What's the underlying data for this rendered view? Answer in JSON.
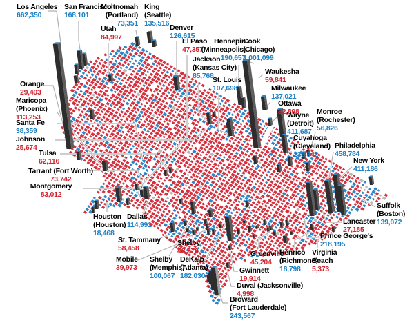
{
  "colors": {
    "dem_text": "#1b80c4",
    "rep_text": "#d0232f",
    "map_dem": "#2e86c6",
    "map_rep": "#d6303f",
    "map_tie": "#b9b9b9",
    "leader": "#b0b0b0",
    "spike_front": "#2d2d2d",
    "spike_side": "#5e5e5e",
    "background": "#ffffff"
  },
  "labels": [
    {
      "id": "los-angeles",
      "lines": [
        "Los Angeles"
      ],
      "value": "662,350",
      "party": "dem"
    },
    {
      "id": "san-francisco",
      "lines": [
        "San Francisco"
      ],
      "value": "168,101",
      "party": "dem"
    },
    {
      "id": "multnomah",
      "lines": [
        "Multnomah",
        "(Portland)"
      ],
      "value": "73,351",
      "party": "dem"
    },
    {
      "id": "king",
      "lines": [
        "King",
        "(Seattle)"
      ],
      "value": "135,516",
      "party": "dem"
    },
    {
      "id": "utah",
      "lines": [
        "Utah"
      ],
      "value": "84,997",
      "party": "rep"
    },
    {
      "id": "denver",
      "lines": [
        "Denver"
      ],
      "value": "126,615",
      "party": "dem"
    },
    {
      "id": "el-paso",
      "lines": [
        "El Paso"
      ],
      "value": "47,357",
      "party": "rep"
    },
    {
      "id": "jackson",
      "lines": [
        "Jackson",
        "(Kansas City)"
      ],
      "value": "85,768",
      "party": "dem"
    },
    {
      "id": "st-louis",
      "lines": [
        "St. Louis"
      ],
      "value": "107,698",
      "party": "dem"
    },
    {
      "id": "hennepin",
      "lines": [
        "Hennepin",
        "(Minneapolis)"
      ],
      "value": "190,657",
      "party": "dem"
    },
    {
      "id": "cook",
      "lines": [
        "Cook",
        "(Chicago)"
      ],
      "value": "1,001,099",
      "party": "dem"
    },
    {
      "id": "waukesha",
      "lines": [
        "Waukesha"
      ],
      "value": "59,841",
      "party": "rep"
    },
    {
      "id": "milwaukee",
      "lines": [
        "Milwaukee"
      ],
      "value": "137,021",
      "party": "dem"
    },
    {
      "id": "ottawa",
      "lines": [
        "Ottawa"
      ],
      "value": "32,898",
      "party": "rep"
    },
    {
      "id": "wayne",
      "lines": [
        "Wayne",
        "(Detroit)"
      ],
      "value": "411,687",
      "party": "dem"
    },
    {
      "id": "monroe",
      "lines": [
        "Monroe",
        "(Rochester)"
      ],
      "value": "56,826",
      "party": "dem"
    },
    {
      "id": "cuyahoga",
      "lines": [
        "Cuyahoga",
        "(Cleveland)"
      ],
      "value": "238,342",
      "party": "dem"
    },
    {
      "id": "philadelphia",
      "lines": [
        "Philadelphia"
      ],
      "value": "458,784",
      "party": "dem"
    },
    {
      "id": "new-york",
      "lines": [
        "New York"
      ],
      "value": "411,186",
      "party": "dem"
    },
    {
      "id": "suffolk-boston",
      "lines": [
        "Suffolk",
        "(Boston)"
      ],
      "value": "139,072",
      "party": "dem"
    },
    {
      "id": "lancaster",
      "lines": [
        "Lancaster"
      ],
      "value": "27,185",
      "party": "rep"
    },
    {
      "id": "prince-georges",
      "lines": [
        "Prince George's"
      ],
      "value": "218,195",
      "party": "dem"
    },
    {
      "id": "virginia-beach",
      "lines": [
        "Virginia",
        "Beach"
      ],
      "value": "5,373",
      "party": "rep"
    },
    {
      "id": "henrico",
      "lines": [
        "Henrico",
        "(Richmond)"
      ],
      "value": "18,798",
      "party": "dem"
    },
    {
      "id": "greenville",
      "lines": [
        "Greenville"
      ],
      "value": "45,204",
      "party": "rep"
    },
    {
      "id": "gwinnett",
      "lines": [
        "Gwinnett"
      ],
      "value": "19,914",
      "party": "rep"
    },
    {
      "id": "duval",
      "lines": [
        "Duval (Jacksonville)"
      ],
      "value": "4,998",
      "party": "rep"
    },
    {
      "id": "broward",
      "lines": [
        "Broward",
        "(Fort Lauderdale)"
      ],
      "value": "243,567",
      "party": "dem"
    },
    {
      "id": "dekalb",
      "lines": [
        "DeKalb",
        "(Atlanta)"
      ],
      "value": "182,030",
      "party": "dem"
    },
    {
      "id": "shelby-al",
      "lines": [
        "Shelby"
      ],
      "value": "48,370",
      "party": "rep"
    },
    {
      "id": "shelby-memphis",
      "lines": [
        "Shelby",
        "(Memphis)"
      ],
      "value": "100,067",
      "party": "dem"
    },
    {
      "id": "mobile",
      "lines": [
        "Mobile"
      ],
      "value": "39,973",
      "party": "rep"
    },
    {
      "id": "st-tammany",
      "lines": [
        "St. Tammany"
      ],
      "value": "58,458",
      "party": "rep"
    },
    {
      "id": "dallas",
      "lines": [
        "Dallas"
      ],
      "value": "114,991",
      "party": "dem"
    },
    {
      "id": "houston",
      "lines": [
        "Houston",
        "(Houston)"
      ],
      "value": "18,468",
      "party": "dem"
    },
    {
      "id": "montgomery",
      "lines": [
        "Montgomery"
      ],
      "value": "83,012",
      "party": "rep"
    },
    {
      "id": "tarrant",
      "lines": [
        "Tarrant (Fort Worth)"
      ],
      "value": "73,742",
      "party": "rep"
    },
    {
      "id": "tulsa",
      "lines": [
        "Tulsa"
      ],
      "value": "62,116",
      "party": "rep"
    },
    {
      "id": "johnson",
      "lines": [
        "Johnson"
      ],
      "value": "25,674",
      "party": "rep"
    },
    {
      "id": "santa-fe",
      "lines": [
        "Santa Fe"
      ],
      "value": "38,359",
      "party": "dem"
    },
    {
      "id": "maricopa",
      "lines": [
        "Maricopa",
        "(Phoenix)"
      ],
      "value": "113,253",
      "party": "rep"
    },
    {
      "id": "orange",
      "lines": [
        "Orange"
      ],
      "value": "29,403",
      "party": "rep"
    }
  ]
}
